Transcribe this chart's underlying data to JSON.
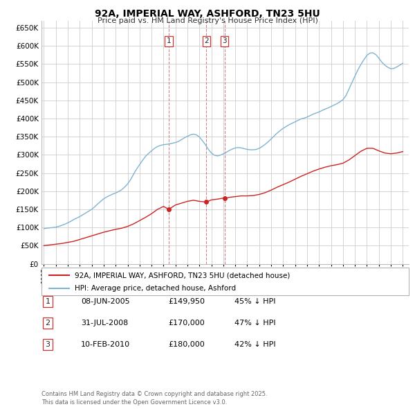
{
  "title": "92A, IMPERIAL WAY, ASHFORD, TN23 5HU",
  "subtitle": "Price paid vs. HM Land Registry's House Price Index (HPI)",
  "background_color": "#ffffff",
  "grid_color": "#cccccc",
  "hpi_color": "#7fb3d3",
  "price_color": "#cc2222",
  "vline_color": "#cc8888",
  "ylim": [
    0,
    670000
  ],
  "yticks": [
    0,
    50000,
    100000,
    150000,
    200000,
    250000,
    300000,
    350000,
    400000,
    450000,
    500000,
    550000,
    600000,
    650000
  ],
  "xlim": [
    1994.8,
    2025.5
  ],
  "legend_entry1": "92A, IMPERIAL WAY, ASHFORD, TN23 5HU (detached house)",
  "legend_entry2": "HPI: Average price, detached house, Ashford",
  "transactions": [
    {
      "num": 1,
      "date": "08-JUN-2005",
      "price": "£149,950",
      "hpi": "45% ↓ HPI",
      "x_year": 2005.44
    },
    {
      "num": 2,
      "date": "31-JUL-2008",
      "price": "£170,000",
      "hpi": "47% ↓ HPI",
      "x_year": 2008.58
    },
    {
      "num": 3,
      "date": "10-FEB-2010",
      "price": "£180,000",
      "hpi": "42% ↓ HPI",
      "x_year": 2010.11
    }
  ],
  "footer_line1": "Contains HM Land Registry data © Crown copyright and database right 2025.",
  "footer_line2": "This data is licensed under the Open Government Licence v3.0.",
  "hpi_x": [
    1995.0,
    1995.25,
    1995.5,
    1995.75,
    1996.0,
    1996.25,
    1996.5,
    1996.75,
    1997.0,
    1997.25,
    1997.5,
    1997.75,
    1998.0,
    1998.25,
    1998.5,
    1998.75,
    1999.0,
    1999.25,
    1999.5,
    1999.75,
    2000.0,
    2000.25,
    2000.5,
    2000.75,
    2001.0,
    2001.25,
    2001.5,
    2001.75,
    2002.0,
    2002.25,
    2002.5,
    2002.75,
    2003.0,
    2003.25,
    2003.5,
    2003.75,
    2004.0,
    2004.25,
    2004.5,
    2004.75,
    2005.0,
    2005.25,
    2005.5,
    2005.75,
    2006.0,
    2006.25,
    2006.5,
    2006.75,
    2007.0,
    2007.25,
    2007.5,
    2007.75,
    2008.0,
    2008.25,
    2008.5,
    2008.75,
    2009.0,
    2009.25,
    2009.5,
    2009.75,
    2010.0,
    2010.25,
    2010.5,
    2010.75,
    2011.0,
    2011.25,
    2011.5,
    2011.75,
    2012.0,
    2012.25,
    2012.5,
    2012.75,
    2013.0,
    2013.25,
    2013.5,
    2013.75,
    2014.0,
    2014.25,
    2014.5,
    2014.75,
    2015.0,
    2015.25,
    2015.5,
    2015.75,
    2016.0,
    2016.25,
    2016.5,
    2016.75,
    2017.0,
    2017.25,
    2017.5,
    2017.75,
    2018.0,
    2018.25,
    2018.5,
    2018.75,
    2019.0,
    2019.25,
    2019.5,
    2019.75,
    2020.0,
    2020.25,
    2020.5,
    2020.75,
    2021.0,
    2021.25,
    2021.5,
    2021.75,
    2022.0,
    2022.25,
    2022.5,
    2022.75,
    2023.0,
    2023.25,
    2023.5,
    2023.75,
    2024.0,
    2024.25,
    2024.5,
    2024.75,
    2025.0
  ],
  "hpi_y": [
    97000,
    98000,
    99000,
    100000,
    101000,
    103000,
    106000,
    109000,
    113000,
    117000,
    122000,
    126000,
    130000,
    135000,
    140000,
    145000,
    150000,
    157000,
    165000,
    172000,
    179000,
    184000,
    188000,
    192000,
    195000,
    199000,
    204000,
    211000,
    220000,
    232000,
    247000,
    261000,
    273000,
    285000,
    296000,
    304000,
    311000,
    318000,
    323000,
    326000,
    328000,
    329000,
    330000,
    332000,
    334000,
    337000,
    342000,
    347000,
    351000,
    355000,
    357000,
    355000,
    349000,
    339000,
    328000,
    315000,
    305000,
    299000,
    297000,
    299000,
    303000,
    307000,
    312000,
    316000,
    319000,
    320000,
    319000,
    317000,
    315000,
    314000,
    314000,
    315000,
    318000,
    323000,
    329000,
    336000,
    344000,
    352000,
    360000,
    367000,
    373000,
    378000,
    383000,
    387000,
    391000,
    395000,
    399000,
    401000,
    404000,
    408000,
    412000,
    415000,
    418000,
    422000,
    426000,
    429000,
    433000,
    437000,
    441000,
    446000,
    452000,
    463000,
    481000,
    499000,
    517000,
    534000,
    549000,
    562000,
    574000,
    580000,
    581000,
    576000,
    566000,
    555000,
    547000,
    541000,
    537000,
    538000,
    542000,
    547000,
    552000
  ],
  "price_x": [
    1995.0,
    1995.5,
    1996.0,
    1996.5,
    1997.0,
    1997.5,
    1998.0,
    1998.5,
    1999.0,
    1999.5,
    2000.0,
    2000.5,
    2001.0,
    2001.5,
    2002.0,
    2002.5,
    2003.0,
    2003.5,
    2004.0,
    2004.5,
    2005.0,
    2005.44,
    2006.0,
    2006.5,
    2007.0,
    2007.5,
    2008.0,
    2008.58,
    2009.0,
    2009.5,
    2010.0,
    2010.11,
    2010.5,
    2011.0,
    2011.5,
    2012.0,
    2012.5,
    2013.0,
    2013.5,
    2014.0,
    2014.5,
    2015.0,
    2015.5,
    2016.0,
    2016.5,
    2017.0,
    2017.5,
    2018.0,
    2018.5,
    2019.0,
    2019.5,
    2020.0,
    2020.5,
    2021.0,
    2021.5,
    2022.0,
    2022.5,
    2023.0,
    2023.5,
    2024.0,
    2024.5,
    2025.0
  ],
  "price_y": [
    50000,
    52000,
    54000,
    56000,
    59000,
    62000,
    67000,
    72000,
    77000,
    82000,
    87000,
    91000,
    95000,
    98000,
    103000,
    110000,
    119000,
    128000,
    138000,
    150000,
    158000,
    149950,
    162000,
    167000,
    172000,
    175000,
    172000,
    170000,
    176000,
    178000,
    181000,
    180000,
    183000,
    185000,
    187000,
    187000,
    188000,
    191000,
    196000,
    203000,
    211000,
    218000,
    225000,
    233000,
    241000,
    248000,
    255000,
    261000,
    266000,
    270000,
    273000,
    277000,
    286000,
    298000,
    310000,
    318000,
    318000,
    311000,
    305000,
    303000,
    305000,
    309000
  ]
}
